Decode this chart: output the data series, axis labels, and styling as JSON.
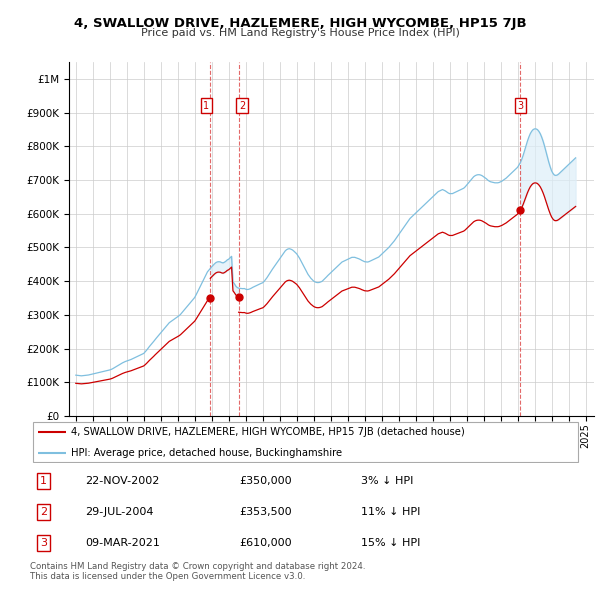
{
  "title": "4, SWALLOW DRIVE, HAZLEMERE, HIGH WYCOMBE, HP15 7JB",
  "subtitle": "Price paid vs. HM Land Registry's House Price Index (HPI)",
  "legend_entry1": "4, SWALLOW DRIVE, HAZLEMERE, HIGH WYCOMBE, HP15 7JB (detached house)",
  "legend_entry2": "HPI: Average price, detached house, Buckinghamshire",
  "transactions": [
    {
      "label": "1",
      "date": "22-NOV-2002",
      "price": 350000,
      "price_str": "£350,000",
      "hpi_diff": "3% ↓ HPI",
      "x": 2002.875
    },
    {
      "label": "2",
      "date": "29-JUL-2004",
      "price": 353500,
      "price_str": "£353,500",
      "hpi_diff": "11% ↓ HPI",
      "x": 2004.583
    },
    {
      "label": "3",
      "date": "09-MAR-2021",
      "price": 610000,
      "price_str": "£610,000",
      "hpi_diff": "15% ↓ HPI",
      "x": 2021.167
    }
  ],
  "footnote1": "Contains HM Land Registry data © Crown copyright and database right 2024.",
  "footnote2": "This data is licensed under the Open Government Licence v3.0.",
  "hpi_color": "#7fbfdf",
  "hpi_fill_color": "#ddeef8",
  "sold_color": "#cc0000",
  "vline_color": "#dd4444",
  "background_color": "#ffffff",
  "ylim": [
    0,
    1050000
  ],
  "yticks": [
    0,
    100000,
    200000,
    300000,
    400000,
    500000,
    600000,
    700000,
    800000,
    900000,
    1000000
  ],
  "xlim_start": 1994.6,
  "xlim_end": 2025.5,
  "hpi_monthly": {
    "years": [
      1995.0,
      1995.083,
      1995.167,
      1995.25,
      1995.333,
      1995.417,
      1995.5,
      1995.583,
      1995.667,
      1995.75,
      1995.833,
      1995.917,
      1996.0,
      1996.083,
      1996.167,
      1996.25,
      1996.333,
      1996.417,
      1996.5,
      1996.583,
      1996.667,
      1996.75,
      1996.833,
      1996.917,
      1997.0,
      1997.083,
      1997.167,
      1997.25,
      1997.333,
      1997.417,
      1997.5,
      1997.583,
      1997.667,
      1997.75,
      1997.833,
      1997.917,
      1998.0,
      1998.083,
      1998.167,
      1998.25,
      1998.333,
      1998.417,
      1998.5,
      1998.583,
      1998.667,
      1998.75,
      1998.833,
      1998.917,
      1999.0,
      1999.083,
      1999.167,
      1999.25,
      1999.333,
      1999.417,
      1999.5,
      1999.583,
      1999.667,
      1999.75,
      1999.833,
      1999.917,
      2000.0,
      2000.083,
      2000.167,
      2000.25,
      2000.333,
      2000.417,
      2000.5,
      2000.583,
      2000.667,
      2000.75,
      2000.833,
      2000.917,
      2001.0,
      2001.083,
      2001.167,
      2001.25,
      2001.333,
      2001.417,
      2001.5,
      2001.583,
      2001.667,
      2001.75,
      2001.833,
      2001.917,
      2002.0,
      2002.083,
      2002.167,
      2002.25,
      2002.333,
      2002.417,
      2002.5,
      2002.583,
      2002.667,
      2002.75,
      2002.833,
      2002.917,
      2003.0,
      2003.083,
      2003.167,
      2003.25,
      2003.333,
      2003.417,
      2003.5,
      2003.583,
      2003.667,
      2003.75,
      2003.833,
      2003.917,
      2004.0,
      2004.083,
      2004.167,
      2004.25,
      2004.333,
      2004.417,
      2004.5,
      2004.583,
      2004.667,
      2004.75,
      2004.833,
      2004.917,
      2005.0,
      2005.083,
      2005.167,
      2005.25,
      2005.333,
      2005.417,
      2005.5,
      2005.583,
      2005.667,
      2005.75,
      2005.833,
      2005.917,
      2006.0,
      2006.083,
      2006.167,
      2006.25,
      2006.333,
      2006.417,
      2006.5,
      2006.583,
      2006.667,
      2006.75,
      2006.833,
      2006.917,
      2007.0,
      2007.083,
      2007.167,
      2007.25,
      2007.333,
      2007.417,
      2007.5,
      2007.583,
      2007.667,
      2007.75,
      2007.833,
      2007.917,
      2008.0,
      2008.083,
      2008.167,
      2008.25,
      2008.333,
      2008.417,
      2008.5,
      2008.583,
      2008.667,
      2008.75,
      2008.833,
      2008.917,
      2009.0,
      2009.083,
      2009.167,
      2009.25,
      2009.333,
      2009.417,
      2009.5,
      2009.583,
      2009.667,
      2009.75,
      2009.833,
      2009.917,
      2010.0,
      2010.083,
      2010.167,
      2010.25,
      2010.333,
      2010.417,
      2010.5,
      2010.583,
      2010.667,
      2010.75,
      2010.833,
      2010.917,
      2011.0,
      2011.083,
      2011.167,
      2011.25,
      2011.333,
      2011.417,
      2011.5,
      2011.583,
      2011.667,
      2011.75,
      2011.833,
      2011.917,
      2012.0,
      2012.083,
      2012.167,
      2012.25,
      2012.333,
      2012.417,
      2012.5,
      2012.583,
      2012.667,
      2012.75,
      2012.833,
      2012.917,
      2013.0,
      2013.083,
      2013.167,
      2013.25,
      2013.333,
      2013.417,
      2013.5,
      2013.583,
      2013.667,
      2013.75,
      2013.833,
      2013.917,
      2014.0,
      2014.083,
      2014.167,
      2014.25,
      2014.333,
      2014.417,
      2014.5,
      2014.583,
      2014.667,
      2014.75,
      2014.833,
      2014.917,
      2015.0,
      2015.083,
      2015.167,
      2015.25,
      2015.333,
      2015.417,
      2015.5,
      2015.583,
      2015.667,
      2015.75,
      2015.833,
      2015.917,
      2016.0,
      2016.083,
      2016.167,
      2016.25,
      2016.333,
      2016.417,
      2016.5,
      2016.583,
      2016.667,
      2016.75,
      2016.833,
      2016.917,
      2017.0,
      2017.083,
      2017.167,
      2017.25,
      2017.333,
      2017.417,
      2017.5,
      2017.583,
      2017.667,
      2017.75,
      2017.833,
      2017.917,
      2018.0,
      2018.083,
      2018.167,
      2018.25,
      2018.333,
      2018.417,
      2018.5,
      2018.583,
      2018.667,
      2018.75,
      2018.833,
      2018.917,
      2019.0,
      2019.083,
      2019.167,
      2019.25,
      2019.333,
      2019.417,
      2019.5,
      2019.583,
      2019.667,
      2019.75,
      2019.833,
      2019.917,
      2020.0,
      2020.083,
      2020.167,
      2020.25,
      2020.333,
      2020.417,
      2020.5,
      2020.583,
      2020.667,
      2020.75,
      2020.833,
      2020.917,
      2021.0,
      2021.083,
      2021.167,
      2021.25,
      2021.333,
      2021.417,
      2021.5,
      2021.583,
      2021.667,
      2021.75,
      2021.833,
      2021.917,
      2022.0,
      2022.083,
      2022.167,
      2022.25,
      2022.333,
      2022.417,
      2022.5,
      2022.583,
      2022.667,
      2022.75,
      2022.833,
      2022.917,
      2023.0,
      2023.083,
      2023.167,
      2023.25,
      2023.333,
      2023.417,
      2023.5,
      2023.583,
      2023.667,
      2023.75,
      2023.833,
      2023.917,
      2024.0,
      2024.083,
      2024.167,
      2024.25,
      2024.333,
      2024.417
    ],
    "values": [
      121000,
      120500,
      120000,
      119500,
      119000,
      119500,
      120000,
      120500,
      121000,
      121500,
      122500,
      123500,
      124500,
      125500,
      126500,
      127500,
      128500,
      129500,
      130500,
      131500,
      132500,
      133500,
      134500,
      135500,
      136500,
      138000,
      140000,
      142500,
      145000,
      147500,
      150000,
      152500,
      155000,
      157500,
      159500,
      161500,
      163000,
      164500,
      166000,
      167500,
      169500,
      171500,
      173500,
      175500,
      177500,
      179500,
      181500,
      183500,
      185500,
      190000,
      195000,
      200500,
      206000,
      211000,
      216000,
      221000,
      226500,
      231500,
      236500,
      241500,
      246500,
      251500,
      256500,
      261500,
      266500,
      271500,
      276500,
      279500,
      282500,
      285500,
      288500,
      291500,
      294500,
      297500,
      301500,
      306500,
      311500,
      316500,
      321500,
      326500,
      331500,
      336500,
      341500,
      346500,
      351500,
      359500,
      368000,
      376500,
      385000,
      393500,
      402000,
      410500,
      419000,
      427500,
      432500,
      437500,
      442500,
      447000,
      451500,
      455000,
      457000,
      457500,
      457000,
      455000,
      454000,
      456000,
      459000,
      463000,
      465000,
      469000,
      473500,
      398000,
      392000,
      385000,
      381000,
      379000,
      378500,
      378000,
      377500,
      378000,
      376000,
      375000,
      375500,
      377000,
      379000,
      381500,
      383500,
      385500,
      387500,
      389500,
      391500,
      393500,
      395000,
      399000,
      404500,
      410000,
      416500,
      423000,
      429500,
      436000,
      442000,
      448000,
      454000,
      460000,
      466000,
      472000,
      478000,
      484000,
      490000,
      493500,
      495500,
      496000,
      494500,
      492500,
      489000,
      485000,
      481000,
      474500,
      468000,
      460000,
      452000,
      444000,
      436000,
      428000,
      420000,
      414000,
      408500,
      404000,
      400000,
      397500,
      396000,
      395500,
      396000,
      397500,
      399500,
      403500,
      407500,
      412000,
      416500,
      420500,
      424500,
      428500,
      432500,
      436500,
      440500,
      444500,
      448500,
      452500,
      456500,
      458500,
      460500,
      462500,
      464500,
      466500,
      468500,
      470500,
      470500,
      470500,
      469000,
      467500,
      466000,
      464000,
      461500,
      459500,
      457500,
      457000,
      456500,
      457500,
      459500,
      461500,
      463500,
      465500,
      467500,
      469500,
      471500,
      475500,
      479500,
      483500,
      487500,
      491500,
      495500,
      499500,
      504500,
      509500,
      514500,
      519500,
      525500,
      531500,
      537500,
      543500,
      549500,
      555500,
      561500,
      567500,
      573500,
      579500,
      585500,
      589500,
      593500,
      597500,
      601500,
      605500,
      609500,
      613500,
      617500,
      621500,
      625500,
      629500,
      633500,
      637500,
      641500,
      645500,
      649500,
      653500,
      657500,
      661500,
      665500,
      667500,
      669500,
      671500,
      669500,
      667500,
      664500,
      661500,
      659500,
      659500,
      659500,
      661500,
      663500,
      665500,
      667500,
      669500,
      671500,
      673500,
      675500,
      679500,
      684500,
      689500,
      694500,
      699500,
      704500,
      709500,
      712500,
      714500,
      715500,
      715500,
      714500,
      712500,
      709500,
      706500,
      703500,
      699500,
      696500,
      694500,
      693500,
      692500,
      691500,
      691500,
      691500,
      692500,
      694500,
      696500,
      699500,
      702500,
      705500,
      709500,
      713500,
      717500,
      721500,
      725500,
      729500,
      733500,
      737500,
      744500,
      751500,
      761500,
      773500,
      787500,
      801500,
      815500,
      827500,
      837500,
      844500,
      849500,
      851500,
      851500,
      849500,
      844500,
      837500,
      827500,
      815500,
      801500,
      785500,
      769500,
      753500,
      739500,
      727500,
      719500,
      714500,
      713500,
      714500,
      717500,
      721500,
      725500,
      729500,
      733500,
      737500,
      741500,
      745500,
      749500,
      753500,
      757500,
      761500,
      765500
    ]
  }
}
